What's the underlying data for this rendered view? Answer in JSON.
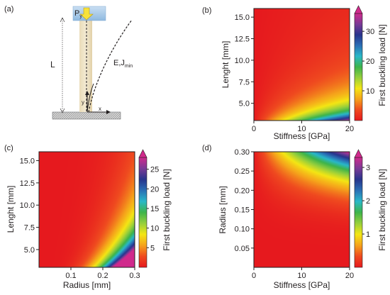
{
  "panel_labels": {
    "a": "(a)",
    "b": "(b)",
    "c": "(c)",
    "d": "(d)"
  },
  "schematic": {
    "load_label_main": "P",
    "load_label_sub": "y",
    "length_label": "L",
    "material_label_main": "E,J",
    "material_label_sub": "min",
    "axis_x": "x",
    "axis_y": "y"
  },
  "colorscale": [
    "#e6191e",
    "#ef4a1f",
    "#f5a21b",
    "#f4e614",
    "#96cf3c",
    "#3db44a",
    "#29b8c8",
    "#2a6fb5",
    "#28348c",
    "#7b3a96",
    "#d02a8c"
  ],
  "chart_data": [
    {
      "id": "b",
      "type": "heatmap",
      "xlabel": "Stiffness [GPa]",
      "ylabel": "Lenght [mm]",
      "colorbar_label": "First buckling load [N]",
      "xlim": [
        0,
        20
      ],
      "ylim": [
        3.0,
        16.0
      ],
      "xticks": [
        0,
        10,
        20
      ],
      "xtick_labels": [
        "0",
        "10",
        "20"
      ],
      "yticks": [
        5.0,
        7.5,
        10.0,
        12.5,
        15.0
      ],
      "ytick_labels": [
        "5.0",
        "7.5",
        "10.0",
        "12.5",
        "15.0"
      ],
      "clim": [
        0,
        36
      ],
      "cticks": [
        10,
        20,
        30
      ],
      "ctick_labels": [
        "10",
        "20",
        "30"
      ],
      "field": "stiffness_over_length_sq"
    },
    {
      "id": "c",
      "type": "heatmap",
      "xlabel": "Radius [mm]",
      "ylabel": "Lenght [mm]",
      "colorbar_label": "First buckling load [N]",
      "xlim": [
        0.0,
        0.3
      ],
      "ylim": [
        3.0,
        16.0
      ],
      "xticks": [
        0.1,
        0.2,
        0.3
      ],
      "xtick_labels": [
        "0.1",
        "0.2",
        "0.3"
      ],
      "yticks": [
        5.0,
        7.5,
        10.0,
        12.5,
        15.0
      ],
      "ytick_labels": [
        "5.0",
        "7.5",
        "10.0",
        "12.5",
        "15.0"
      ],
      "clim": [
        0,
        28
      ],
      "cticks": [
        5,
        10,
        15,
        20,
        25
      ],
      "ctick_labels": [
        "5",
        "10",
        "15",
        "20",
        "25"
      ],
      "field": "radius4_over_length_sq"
    },
    {
      "id": "d",
      "type": "heatmap",
      "xlabel": "Stiffness [GPa]",
      "ylabel": "Radius [mm]",
      "colorbar_label": "First buckling load [N]",
      "xlim": [
        0,
        20
      ],
      "ylim": [
        0.0,
        0.3
      ],
      "xticks": [
        0,
        10,
        20
      ],
      "xtick_labels": [
        "0",
        "10",
        "20"
      ],
      "yticks": [
        0.05,
        0.1,
        0.15,
        0.2,
        0.25,
        0.3
      ],
      "ytick_labels": [
        "0.05",
        "0.10",
        "0.15",
        "0.20",
        "0.25",
        "0.30"
      ],
      "clim": [
        0,
        3.3
      ],
      "cticks": [
        1,
        2,
        3
      ],
      "ctick_labels": [
        "1",
        "2",
        "3"
      ],
      "field": "stiffness_times_radius4"
    }
  ]
}
